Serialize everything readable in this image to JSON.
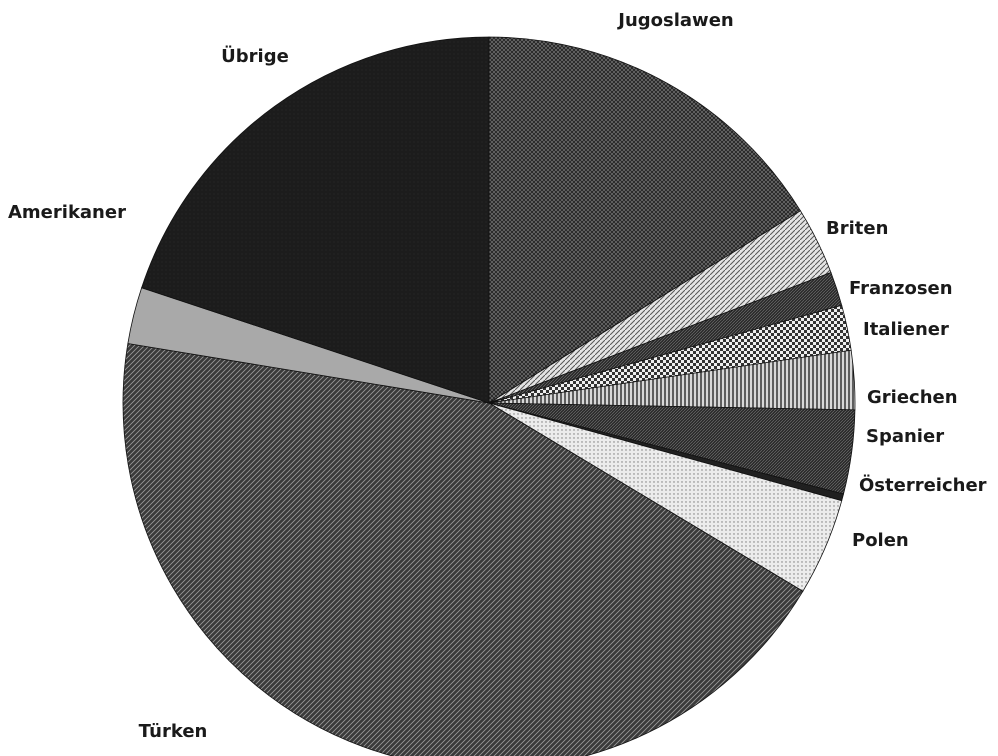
{
  "chart_data": {
    "type": "pie",
    "title": "",
    "start_angle_deg": 0,
    "direction": "clockwise",
    "slices": [
      {
        "label": "Jugoslawen",
        "value": 16.2,
        "pattern": "crosshatch-dark"
      },
      {
        "label": "Briten",
        "value": 3.0,
        "pattern": "diag-light"
      },
      {
        "label": "Franzosen",
        "value": 1.5,
        "pattern": "dense-dark"
      },
      {
        "label": "Italiener",
        "value": 2.0,
        "pattern": "checker"
      },
      {
        "label": "Griechen",
        "value": 2.6,
        "pattern": "vertical"
      },
      {
        "label": "Spanier",
        "value": 3.7,
        "pattern": "dense-dark"
      },
      {
        "label": "Österreicher",
        "value": 0.3,
        "pattern": "dark"
      },
      {
        "label": "Polen",
        "value": 4.3,
        "pattern": "dots-light"
      },
      {
        "label": "Türken",
        "value": 44.0,
        "pattern": "diag-dark"
      },
      {
        "label": "Amerikaner",
        "value": 2.5,
        "pattern": "gray"
      },
      {
        "label": "Übrige",
        "value": 19.9,
        "pattern": "solid-dark"
      }
    ]
  },
  "colors": {
    "outline": "#111111",
    "background": "#ffffff"
  }
}
